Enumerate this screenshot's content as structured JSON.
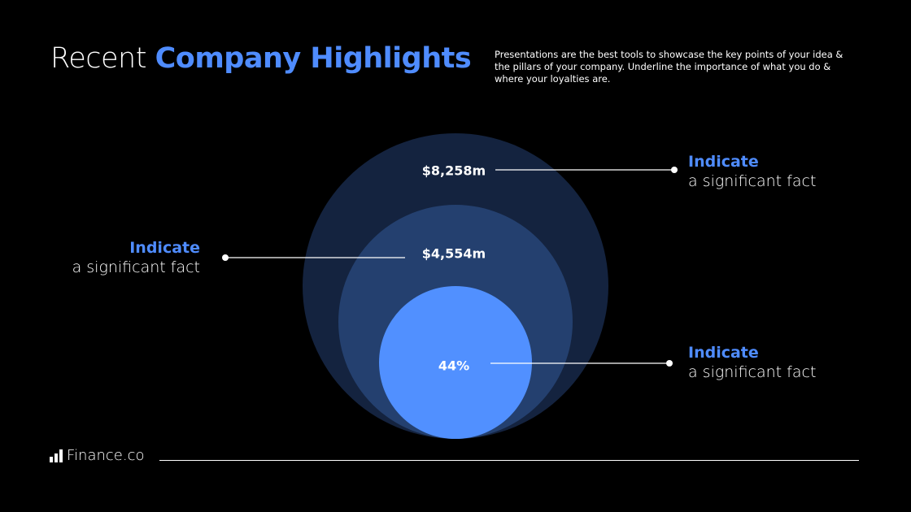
{
  "header": {
    "title_plain": "Recent",
    "title_accent": "Company Highlights",
    "description": "Presentations are the best tools to showcase the key points of your idea & the pillars of your company. Underline the importance of what you do & where your loyalties are."
  },
  "colors": {
    "accent": "#4f8cff",
    "outer_circle": "#14233f",
    "middle_circle": "#24406f",
    "inner_circle": "#5190ff",
    "background": "#000000"
  },
  "circles": [
    {
      "value": "$8,258m",
      "fact_highlight": "Indicate",
      "fact_text": "a significant fact"
    },
    {
      "value": "$4,554m",
      "fact_highlight": "Indicate",
      "fact_text": "a significant fact"
    },
    {
      "value": "44%",
      "fact_highlight": "Indicate",
      "fact_text": "a significant fact"
    }
  ],
  "footer": {
    "brand": "Finance.co",
    "logo_icon": "bar-chart-icon"
  }
}
